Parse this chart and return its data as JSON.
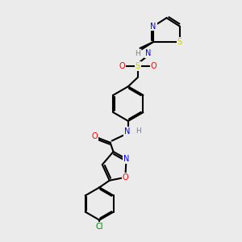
{
  "background_color": "#ebebeb",
  "atom_colors": {
    "C": "#000000",
    "N": "#0000ff",
    "O": "#ff0000",
    "S": "#cccc00",
    "Cl": "#008000",
    "H": "#708090"
  },
  "bond_color": "#000000",
  "line_width": 1.5
}
